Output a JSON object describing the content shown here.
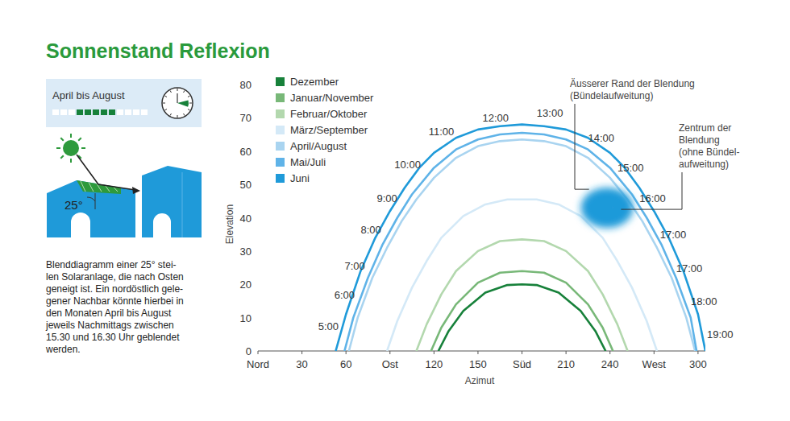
{
  "title": "Sonnenstand Reflexion",
  "info_box": {
    "label": "April bis August",
    "months": [
      0,
      0,
      0,
      1,
      1,
      1,
      1,
      1,
      0,
      0,
      0,
      0
    ]
  },
  "illustration": {
    "angle_label": "25°"
  },
  "description": [
    "Blenddiagramm einer 25° stei-",
    "len Solaranlage, die nach Osten",
    "geneigt ist. Ein nordöstlich gele-",
    "gener Nachbar könnte hierbei in",
    "den Monaten April bis August",
    "jeweils Nachmittags zwischen",
    "15.30 und 16.30 Uhr geblendet",
    "werden."
  ],
  "chart_data": {
    "type": "line",
    "x_label": "Azimut",
    "y_label": "Elevation",
    "xlim": [
      0,
      305
    ],
    "ylim": [
      0,
      80
    ],
    "xticks": [
      {
        "value": 0,
        "label": "Nord"
      },
      30,
      60,
      {
        "value": 90,
        "label": "Ost"
      },
      120,
      150,
      {
        "value": 180,
        "label": "Süd"
      },
      210,
      240,
      {
        "value": 270,
        "label": "West"
      },
      300
    ],
    "yticks": [
      0,
      10,
      20,
      30,
      40,
      50,
      60,
      70,
      80
    ],
    "legend": "top-left",
    "series": [
      {
        "name": "Dezember",
        "color": "#17813a",
        "x": [
          123,
          130,
          140,
          155,
          170,
          180,
          190,
          205,
          220,
          230,
          237
        ],
        "values": [
          0,
          6,
          12,
          17.5,
          19.8,
          20,
          19.8,
          17.5,
          12,
          6,
          0
        ]
      },
      {
        "name": "Januar/November",
        "color": "#78b878",
        "x": [
          118,
          125,
          135,
          150,
          165,
          180,
          195,
          210,
          225,
          235,
          242
        ],
        "values": [
          0,
          7,
          14,
          20.5,
          23.5,
          24,
          23.5,
          20.5,
          14,
          7,
          0
        ]
      },
      {
        "name": "Februar/Oktober",
        "color": "#b3d8ae",
        "x": [
          108,
          115,
          125,
          135,
          150,
          165,
          180,
          195,
          210,
          225,
          235,
          245,
          252
        ],
        "values": [
          0,
          8,
          17,
          24,
          30,
          33,
          33.5,
          33,
          30,
          24,
          17,
          8,
          0
        ]
      },
      {
        "name": "März/September",
        "color": "#d4e9f7",
        "x": [
          88,
          95,
          105,
          115,
          125,
          140,
          155,
          170,
          180,
          190,
          205,
          220,
          235,
          245,
          255,
          265,
          272
        ],
        "values": [
          0,
          9,
          19,
          27,
          34,
          40.5,
          44,
          45.5,
          45.5,
          45.5,
          44,
          40.5,
          34,
          27,
          19,
          9,
          0
        ]
      },
      {
        "name": "April/August",
        "color": "#a9d4f0",
        "x": [
          62,
          68,
          78,
          88,
          98,
          108,
          120,
          135,
          150,
          165,
          180,
          195,
          210,
          225,
          240,
          252,
          262,
          272,
          282,
          292,
          298
        ],
        "values": [
          0,
          10,
          22,
          31,
          39,
          45.5,
          52,
          58,
          61.5,
          63,
          63.5,
          63,
          61.5,
          58,
          52,
          45.5,
          39,
          31,
          22,
          10,
          0
        ]
      },
      {
        "name": "Mai/Juli",
        "color": "#5fb3e8",
        "x": [
          59,
          65,
          75,
          85,
          95,
          105,
          120,
          135,
          150,
          165,
          180,
          195,
          210,
          225,
          240,
          255,
          265,
          275,
          285,
          295,
          299
        ],
        "values": [
          0,
          10,
          22,
          32,
          40,
          47,
          55,
          60.5,
          63.5,
          65,
          65.5,
          65,
          63.5,
          60.5,
          55,
          47,
          40,
          32,
          22,
          10,
          0
        ]
      },
      {
        "name": "Juni",
        "color": "#1f9ad9",
        "x": [
          53,
          60,
          70,
          80,
          90,
          100,
          110,
          120,
          135,
          150,
          165,
          180,
          195,
          210,
          225,
          240,
          250,
          260,
          270,
          280,
          290,
          300,
          305
        ],
        "values": [
          0,
          11,
          24,
          34,
          42,
          49,
          55,
          59.5,
          64,
          66.5,
          67.5,
          68,
          67.5,
          66.5,
          64,
          59.5,
          55,
          49,
          42,
          34,
          24,
          11,
          0
        ]
      }
    ],
    "time_labels": [
      {
        "text": "5:00",
        "x": 48,
        "y": 7.5
      },
      {
        "text": "6:00",
        "x": 59,
        "y": 17
      },
      {
        "text": "7:00",
        "x": 66,
        "y": 25.5
      },
      {
        "text": "8:00",
        "x": 77,
        "y": 36.5
      },
      {
        "text": "9:00",
        "x": 88,
        "y": 46
      },
      {
        "text": "10:00",
        "x": 102,
        "y": 56
      },
      {
        "text": "11:00",
        "x": 125,
        "y": 66
      },
      {
        "text": "12:00",
        "x": 162,
        "y": 70
      },
      {
        "text": "13:00",
        "x": 199,
        "y": 71.5
      },
      {
        "text": "14:00",
        "x": 234,
        "y": 64
      },
      {
        "text": "15:00",
        "x": 254,
        "y": 55
      },
      {
        "text": "16:00",
        "x": 269,
        "y": 46
      },
      {
        "text": "17:00",
        "x": 283,
        "y": 35
      },
      {
        "text": "17:00",
        "x": 294,
        "y": 25
      },
      {
        "text": "18:00",
        "x": 304,
        "y": 15
      },
      {
        "text": "19:00",
        "x": 315,
        "y": 5
      }
    ],
    "glare": {
      "azimuth": [
        218,
        258
      ],
      "elevation": [
        36,
        50
      ],
      "center_azimuth": 242,
      "center_elevation": 43
    },
    "annotations": [
      {
        "text": [
          "Äusserer Rand der Blendung",
          "(Bündelaufweitung)"
        ]
      },
      {
        "text": [
          "Zentrum der",
          "Blendung",
          "(ohne Bündel-",
          "aufweitung)"
        ]
      }
    ]
  }
}
